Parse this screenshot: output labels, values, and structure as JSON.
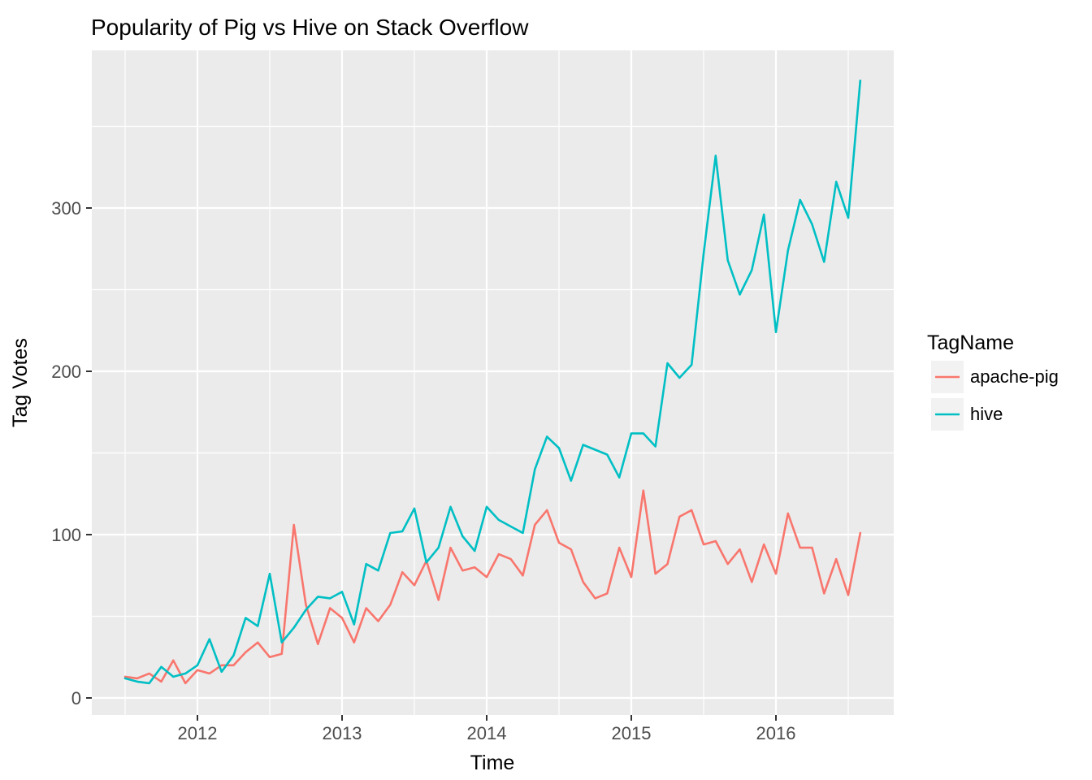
{
  "style": {
    "panel_bg": "#EBEBEB",
    "grid_color": "#FFFFFF",
    "legend_key_bg": "#F2F2F2",
    "tick_color": "#333333",
    "tick_label_color": "#4D4D4D"
  },
  "legend": {
    "title": "TagName",
    "items": [
      {
        "label": "apache-pig",
        "color": "#F8766D"
      },
      {
        "label": "hive",
        "color": "#00BFC4"
      }
    ]
  },
  "chart_data": {
    "type": "line",
    "title": "Popularity of Pig vs Hive on Stack Overflow",
    "xlabel": "Time",
    "ylabel": "Tag Votes",
    "x_ticks": [
      2012,
      2013,
      2014,
      2015,
      2016
    ],
    "x_minor_ticks": [
      2011.5,
      2012.5,
      2013.5,
      2014.5,
      2015.5,
      2016.5
    ],
    "y_ticks": [
      0,
      100,
      200,
      300
    ],
    "y_minor_ticks": [
      50,
      150,
      250,
      350
    ],
    "ylim": [
      -10,
      397
    ],
    "x_start_year": 2011.5,
    "x_step_years": 0.0833333,
    "grid": "on",
    "legend_position": "right",
    "months": [
      "2011-07",
      "2011-08",
      "2011-09",
      "2011-10",
      "2011-11",
      "2011-12",
      "2012-01",
      "2012-02",
      "2012-03",
      "2012-04",
      "2012-05",
      "2012-06",
      "2012-07",
      "2012-08",
      "2012-09",
      "2012-10",
      "2012-11",
      "2012-12",
      "2013-01",
      "2013-02",
      "2013-03",
      "2013-04",
      "2013-05",
      "2013-06",
      "2013-07",
      "2013-08",
      "2013-09",
      "2013-10",
      "2013-11",
      "2013-12",
      "2014-01",
      "2014-02",
      "2014-03",
      "2014-04",
      "2014-05",
      "2014-06",
      "2014-07",
      "2014-08",
      "2014-09",
      "2014-10",
      "2014-11",
      "2014-12",
      "2015-01",
      "2015-02",
      "2015-03",
      "2015-04",
      "2015-05",
      "2015-06",
      "2015-07",
      "2015-08",
      "2015-09",
      "2015-10",
      "2015-11",
      "2015-12",
      "2016-01",
      "2016-02",
      "2016-03",
      "2016-04",
      "2016-05",
      "2016-06",
      "2016-07",
      "2016-08"
    ],
    "series": [
      {
        "name": "apache-pig",
        "color": "#F8766D",
        "values": [
          13,
          12,
          15,
          10,
          23,
          9,
          17,
          15,
          20,
          20,
          28,
          34,
          25,
          27,
          106,
          57,
          33,
          55,
          49,
          34,
          55,
          47,
          57,
          77,
          69,
          84,
          60,
          92,
          78,
          80,
          74,
          88,
          85,
          75,
          106,
          115,
          95,
          91,
          71,
          61,
          64,
          92,
          74,
          127,
          76,
          82,
          111,
          115,
          94,
          96,
          82,
          91,
          71,
          94,
          76,
          113,
          92,
          92,
          64,
          85,
          63,
          101
        ]
      },
      {
        "name": "hive",
        "color": "#00BFC4",
        "values": [
          12,
          10,
          9,
          19,
          13,
          15,
          20,
          36,
          16,
          26,
          49,
          44,
          76,
          34,
          43,
          54,
          62,
          61,
          65,
          45,
          82,
          78,
          101,
          102,
          116,
          83,
          92,
          117,
          99,
          90,
          117,
          109,
          105,
          101,
          140,
          160,
          153,
          133,
          155,
          152,
          149,
          135,
          162,
          162,
          154,
          205,
          196,
          204,
          272,
          332,
          268,
          247,
          262,
          296,
          224,
          274,
          305,
          290,
          267,
          316,
          294,
          378
        ]
      }
    ]
  }
}
